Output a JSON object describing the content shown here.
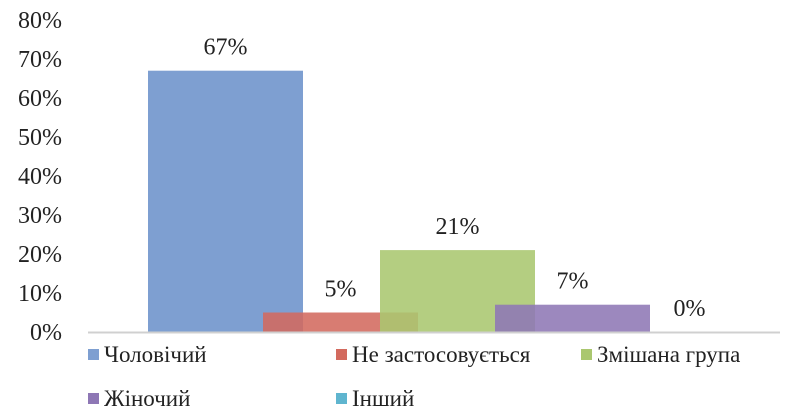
{
  "chart_data": {
    "type": "bar",
    "ylim": [
      0,
      80
    ],
    "y_ticks": [
      "0%",
      "10%",
      "20%",
      "30%",
      "40%",
      "50%",
      "60%",
      "70%",
      "80%"
    ],
    "grid": false,
    "legend_position": "bottom",
    "series": [
      {
        "name": "Чоловічий",
        "value": 67,
        "label": "67%",
        "color": "#7e9fd1"
      },
      {
        "name": "Не застосовується",
        "value": 5,
        "label": "5%",
        "color": "#d36a5e"
      },
      {
        "name": "Змішана група",
        "value": 21,
        "label": "21%",
        "color": "#aac76f"
      },
      {
        "name": "Жіночий",
        "value": 7,
        "label": "7%",
        "color": "#8e77b5"
      },
      {
        "name": "Інший",
        "value": 0,
        "label": "0%",
        "color": "#5fb5cf"
      }
    ]
  }
}
